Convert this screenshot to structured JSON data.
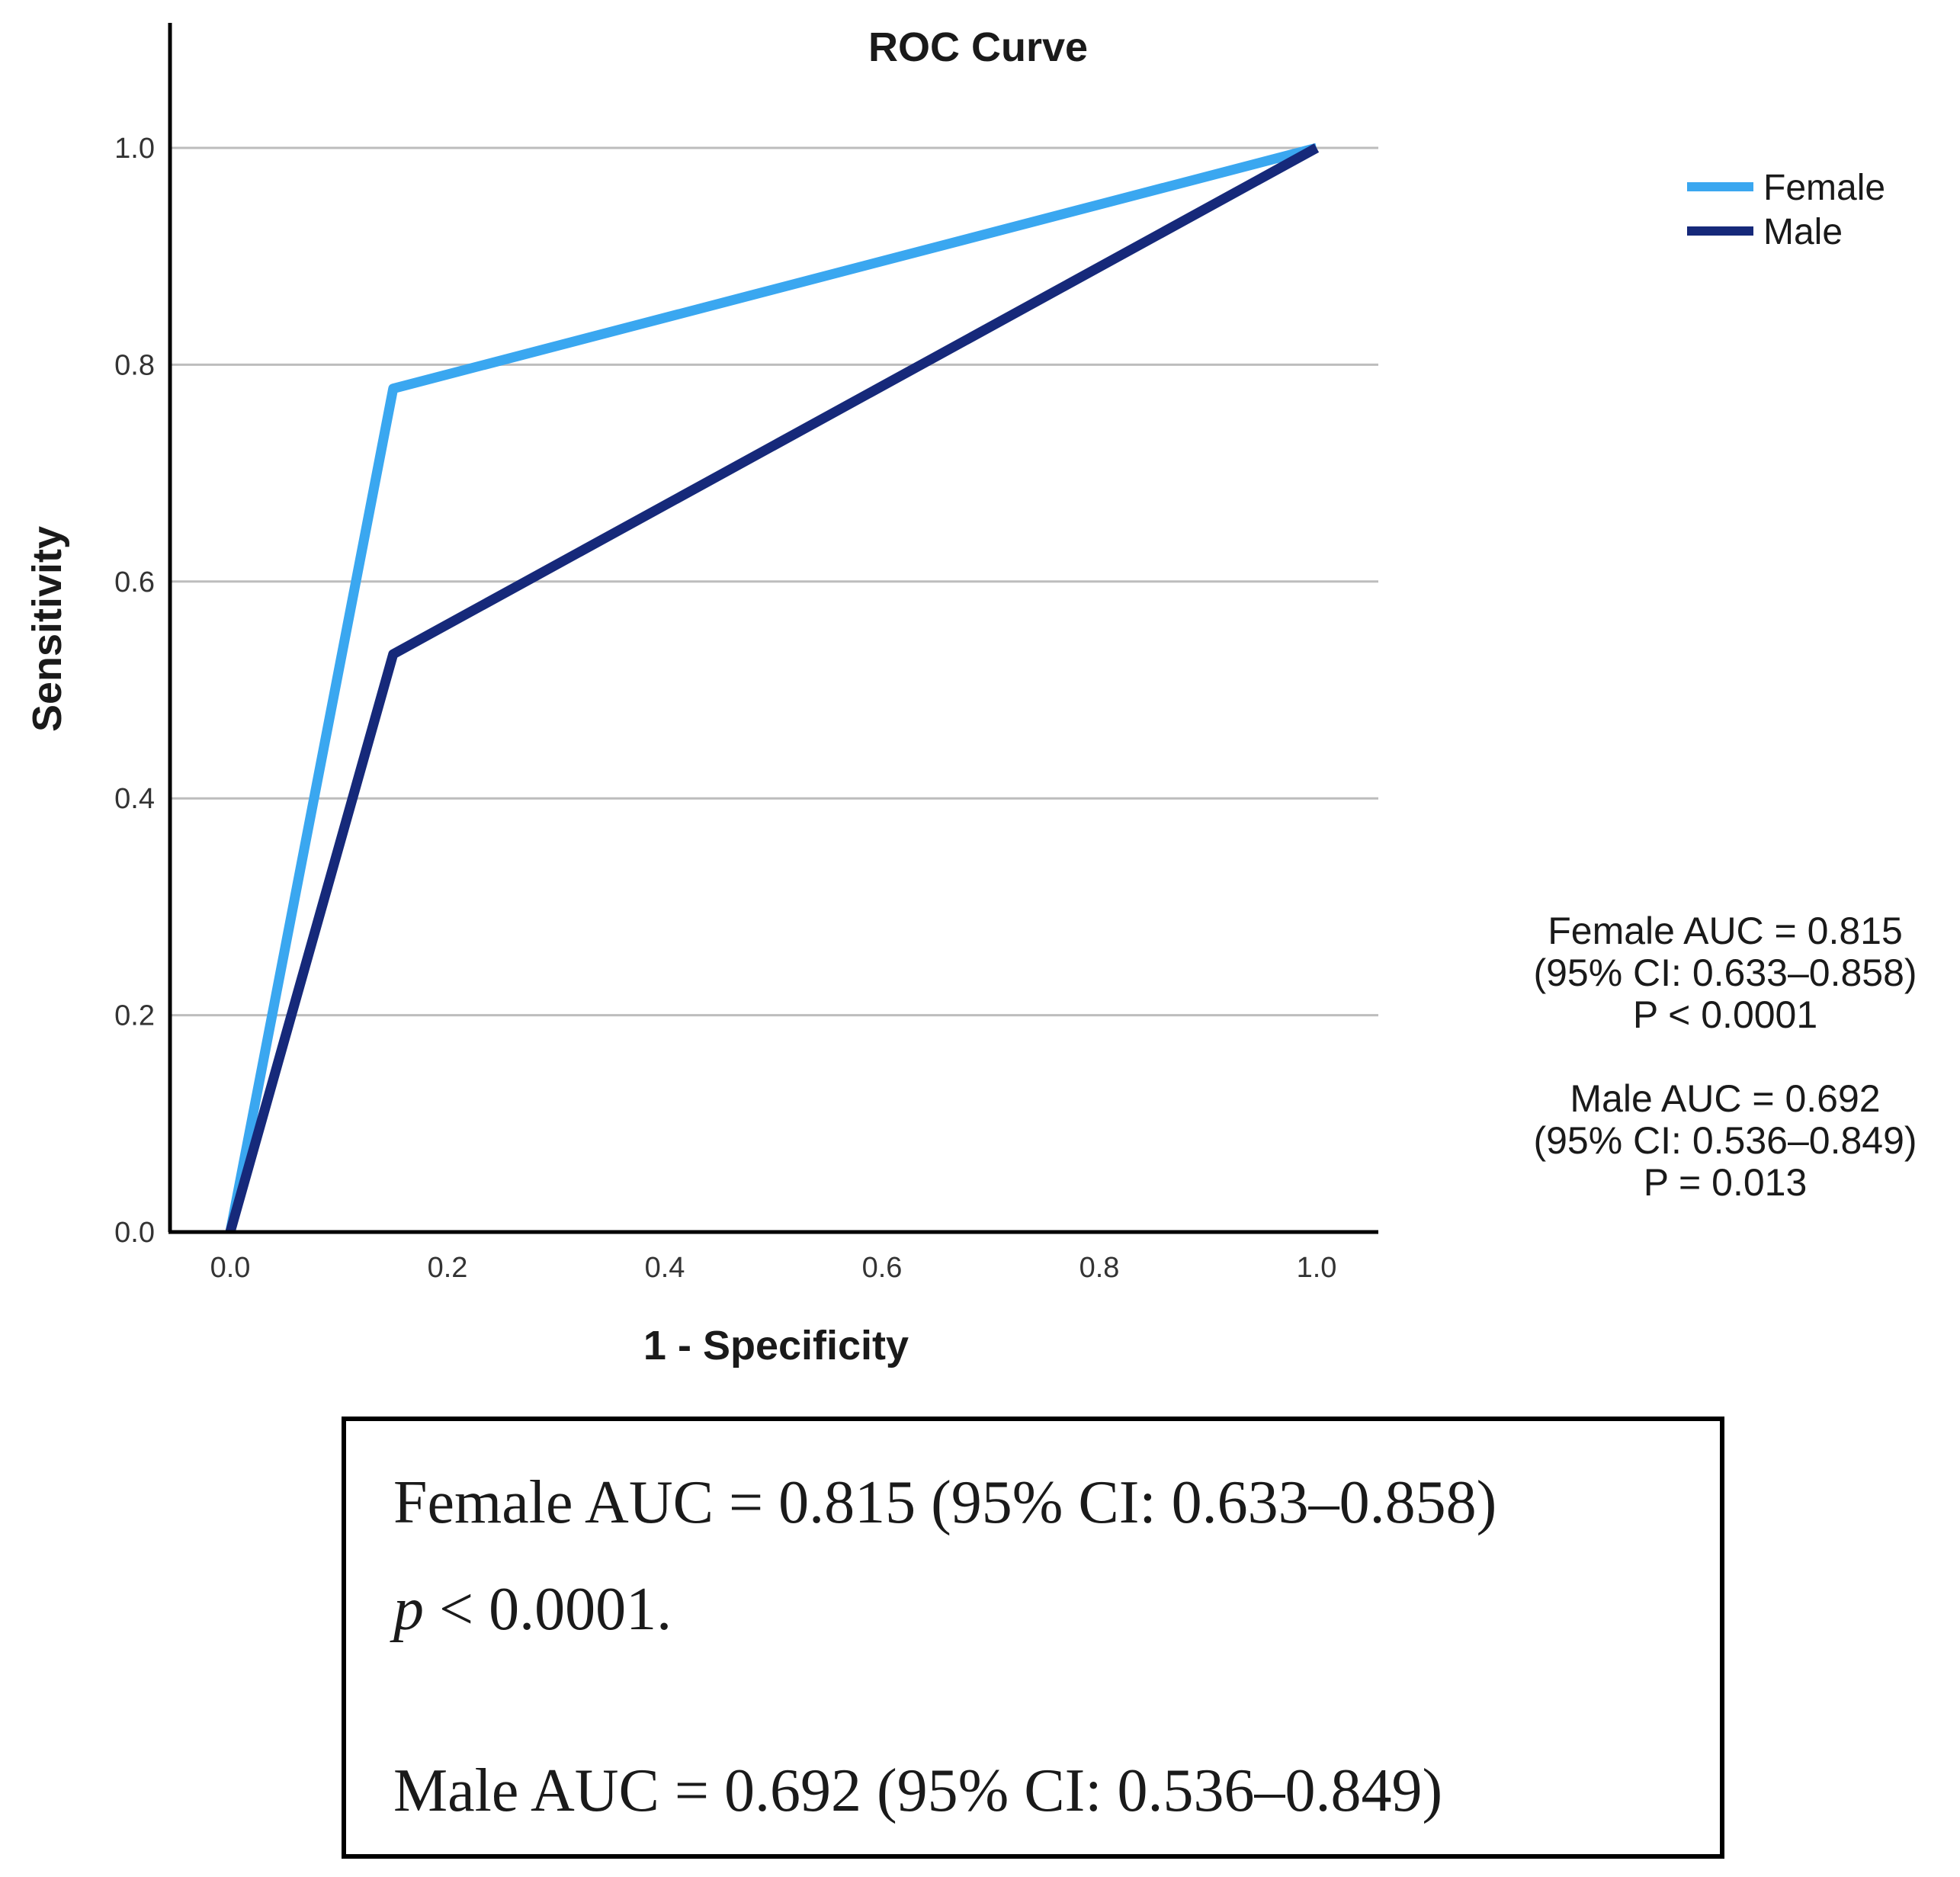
{
  "chart_data": {
    "type": "line",
    "title": "ROC Curve",
    "xlabel": "1 - Specificity",
    "ylabel": "Sensitivity",
    "xlim": [
      0.0,
      1.0
    ],
    "ylim": [
      0.0,
      1.0
    ],
    "x_ticks": [
      "0.0",
      "0.2",
      "0.4",
      "0.6",
      "0.8",
      "1.0"
    ],
    "y_ticks": [
      "0.0",
      "0.2",
      "0.4",
      "0.6",
      "0.8",
      "1.0"
    ],
    "grid": "horizontal",
    "legend_position": "top-right",
    "series": [
      {
        "name": "Female",
        "color": "#3aa7f0",
        "points": [
          [
            0.0,
            0.0
          ],
          [
            0.15,
            0.778
          ],
          [
            1.0,
            1.0
          ]
        ]
      },
      {
        "name": "Male",
        "color": "#16297a",
        "points": [
          [
            0.0,
            0.0
          ],
          [
            0.15,
            0.533
          ],
          [
            1.0,
            1.0
          ]
        ]
      }
    ],
    "annotations": {
      "female": [
        "Female AUC = 0.815",
        "(95% CI: 0.633–0.858)",
        "P < 0.0001"
      ],
      "male": [
        "Male AUC = 0.692",
        "(95% CI: 0.536–0.849)",
        "P = 0.013"
      ]
    }
  },
  "notes": {
    "female_line": "Female AUC = 0.815 (95% CI: 0.633–0.858)",
    "p_symbol": "p",
    "p_value": " < 0.0001.",
    "male_line": "Male AUC = 0.692 (95% CI: 0.536–0.849)"
  }
}
